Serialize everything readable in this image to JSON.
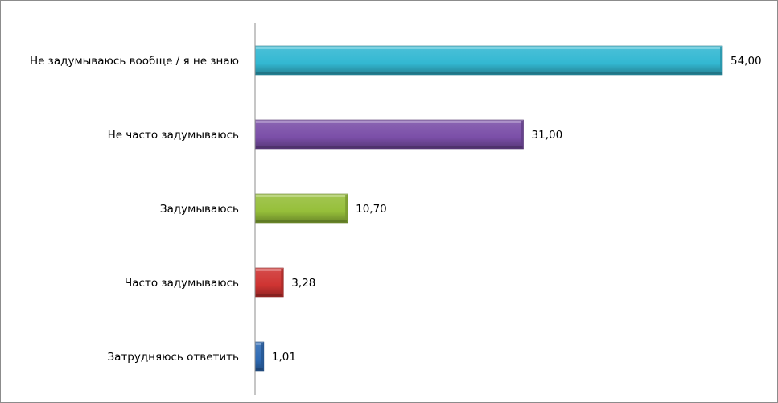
{
  "chart_data": {
    "type": "bar",
    "orientation": "horizontal",
    "title": "",
    "xlabel": "",
    "ylabel": "",
    "categories": [
      "Не задумываюсь вообще / я не знаю",
      "Не часто задумываюсь",
      "Задумываюсь",
      "Часто задумываюсь",
      "Затрудняюсь ответить"
    ],
    "values": [
      54.0,
      31.0,
      10.7,
      3.28,
      1.01
    ],
    "value_labels": [
      "54,00",
      "31,00",
      "10,70",
      "3,28",
      "1,01"
    ],
    "bar_colors": [
      "#33b8d2",
      "#7b4fa8",
      "#96bf3a",
      "#cf3432",
      "#2f6bb5"
    ],
    "xlim": [
      0,
      54
    ],
    "grid": false,
    "legend": "none",
    "bar_style": "3d-bevel"
  }
}
